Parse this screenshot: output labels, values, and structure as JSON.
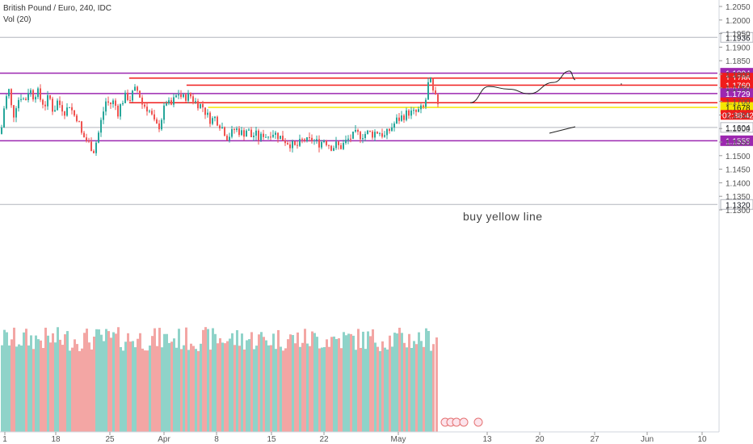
{
  "header": {
    "title": "British Pound / Euro, 240, IDC",
    "indicator": "Vol (20)"
  },
  "annotation": "buy yellow line",
  "colors": {
    "up": "#26a69a",
    "down": "#ef5350",
    "vol_up": "#8fd3c9",
    "vol_down": "#f3a6a4",
    "purple": "#9c27b0",
    "red": "#f01c1c",
    "yellow": "#f5e600",
    "gray": "#b2b5be"
  },
  "chart_data": {
    "type": "candlestick",
    "symbol": "British Pound / Euro",
    "timeframe": "240",
    "ylim": [
      1.1255,
      1.2075
    ],
    "y_ticks": [
      "1.2050",
      "1.2000",
      "1.1950",
      "1.1900",
      "1.1850",
      "1.1800",
      "1.1750",
      "1.1700",
      "1.1650",
      "1.1600",
      "1.1550",
      "1.1500",
      "1.1450",
      "1.1400",
      "1.1350",
      "1.1300"
    ],
    "x_ticks": [
      "1",
      "18",
      "25",
      "Apr",
      "8",
      "15",
      "22",
      "May",
      "13",
      "20",
      "27",
      "Jun",
      "10"
    ],
    "current_price_countdown": "02:38:42",
    "levels": [
      {
        "price": 1.1936,
        "label": "1.1936",
        "kind": "gray",
        "start": 0
      },
      {
        "price": 1.1804,
        "label": "1.1804",
        "kind": "purple",
        "start": 0
      },
      {
        "price": 1.1786,
        "label": "1.1786",
        "kind": "red",
        "start": 0.18
      },
      {
        "price": 1.176,
        "label": "1.1760",
        "kind": "red",
        "start": 0.26
      },
      {
        "price": 1.1729,
        "label": "1.1729",
        "kind": "purple",
        "start": 0
      },
      {
        "price": 1.1695,
        "label": "1.1695",
        "kind": "red",
        "start": 0.18
      },
      {
        "price": 1.1689,
        "label": "1.1689",
        "kind": "price",
        "start": 0.29
      },
      {
        "price": 1.1678,
        "label": "1.1678",
        "kind": "yellow",
        "start": 0.29
      },
      {
        "price": 1.1604,
        "label": "1.1604",
        "kind": "gray",
        "start": 0
      },
      {
        "price": 1.1555,
        "label": "1.1555",
        "kind": "purple",
        "start": 0
      },
      {
        "price": 1.132,
        "label": "1.1320",
        "kind": "gray",
        "start": 0
      }
    ],
    "close_path": [
      [
        0,
        1.158
      ],
      [
        5,
        1.17
      ],
      [
        10,
        1.174
      ],
      [
        15,
        1.164
      ],
      [
        20,
        1.17
      ],
      [
        25,
        1.172
      ],
      [
        30,
        1.17
      ],
      [
        35,
        1.175
      ],
      [
        40,
        1.172
      ],
      [
        45,
        1.174
      ],
      [
        50,
        1.17
      ],
      [
        55,
        1.169
      ],
      [
        60,
        1.172
      ],
      [
        65,
        1.166
      ],
      [
        70,
        1.17
      ],
      [
        75,
        1.168
      ],
      [
        80,
        1.166
      ],
      [
        85,
        1.169
      ],
      [
        90,
        1.165
      ],
      [
        95,
        1.164
      ],
      [
        100,
        1.158
      ],
      [
        105,
        1.156
      ],
      [
        110,
        1.154
      ],
      [
        115,
        1.152
      ],
      [
        120,
        1.157
      ],
      [
        125,
        1.164
      ],
      [
        130,
        1.17
      ],
      [
        135,
        1.169
      ],
      [
        140,
        1.17
      ],
      [
        145,
        1.166
      ],
      [
        150,
        1.17
      ],
      [
        155,
        1.172
      ],
      [
        160,
        1.171
      ],
      [
        165,
        1.174
      ],
      [
        170,
        1.174
      ],
      [
        175,
        1.169
      ],
      [
        180,
        1.168
      ],
      [
        185,
        1.166
      ],
      [
        190,
        1.162
      ],
      [
        195,
        1.16
      ],
      [
        200,
        1.165
      ],
      [
        205,
        1.17
      ],
      [
        210,
        1.168
      ],
      [
        215,
        1.171
      ],
      [
        220,
        1.173
      ],
      [
        225,
        1.171
      ],
      [
        230,
        1.172
      ],
      [
        235,
        1.172
      ],
      [
        240,
        1.17
      ],
      [
        245,
        1.169
      ],
      [
        250,
        1.168
      ],
      [
        255,
        1.165
      ],
      [
        260,
        1.163
      ],
      [
        265,
        1.164
      ],
      [
        270,
        1.162
      ],
      [
        275,
        1.16
      ],
      [
        280,
        1.157
      ],
      [
        285,
        1.158
      ],
      [
        290,
        1.16
      ],
      [
        295,
        1.159
      ],
      [
        300,
        1.158
      ],
      [
        305,
        1.16
      ],
      [
        310,
        1.157
      ],
      [
        315,
        1.158
      ],
      [
        320,
        1.156
      ],
      [
        325,
        1.158
      ],
      [
        330,
        1.157
      ],
      [
        335,
        1.159
      ],
      [
        340,
        1.158
      ],
      [
        345,
        1.157
      ],
      [
        350,
        1.156
      ],
      [
        355,
        1.155
      ],
      [
        360,
        1.154
      ],
      [
        365,
        1.153
      ],
      [
        370,
        1.1545
      ],
      [
        375,
        1.156
      ],
      [
        380,
        1.155
      ],
      [
        385,
        1.156
      ],
      [
        390,
        1.155
      ],
      [
        395,
        1.1545
      ],
      [
        400,
        1.156
      ],
      [
        405,
        1.1545
      ],
      [
        410,
        1.153
      ],
      [
        415,
        1.154
      ],
      [
        420,
        1.153
      ],
      [
        425,
        1.1545
      ],
      [
        430,
        1.156
      ],
      [
        435,
        1.157
      ],
      [
        440,
        1.158
      ],
      [
        445,
        1.1575
      ],
      [
        450,
        1.158
      ],
      [
        455,
        1.1585
      ],
      [
        460,
        1.158
      ],
      [
        465,
        1.159
      ],
      [
        470,
        1.1585
      ],
      [
        475,
        1.157
      ],
      [
        480,
        1.159
      ],
      [
        485,
        1.161
      ],
      [
        490,
        1.163
      ],
      [
        495,
        1.164
      ],
      [
        500,
        1.165
      ],
      [
        505,
        1.166
      ],
      [
        510,
        1.1655
      ],
      [
        515,
        1.166
      ],
      [
        520,
        1.167
      ],
      [
        525,
        1.168
      ],
      [
        528,
        1.176
      ],
      [
        532,
        1.177
      ],
      [
        535,
        1.173
      ],
      [
        538,
        1.171
      ],
      [
        541,
        1.1696
      ]
    ],
    "projection": [
      [
        582,
        1.1695
      ],
      [
        605,
        1.1755
      ],
      [
        630,
        1.1745
      ],
      [
        655,
        1.1728
      ],
      [
        685,
        1.177
      ],
      [
        705,
        1.1812
      ],
      [
        712,
        1.178
      ]
    ]
  }
}
